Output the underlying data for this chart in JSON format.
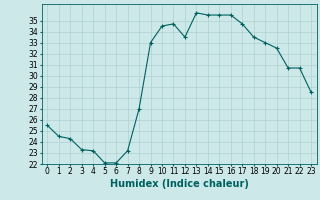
{
  "x": [
    0,
    1,
    2,
    3,
    4,
    5,
    6,
    7,
    8,
    9,
    10,
    11,
    12,
    13,
    14,
    15,
    16,
    17,
    18,
    19,
    20,
    21,
    22,
    23
  ],
  "y": [
    25.5,
    24.5,
    24.3,
    23.3,
    23.2,
    22.1,
    22.1,
    23.2,
    27.0,
    33.0,
    34.5,
    34.7,
    33.5,
    35.7,
    35.5,
    35.5,
    35.5,
    34.7,
    33.5,
    33.0,
    32.5,
    30.7,
    30.7,
    28.5
  ],
  "xlabel": "Humidex (Indice chaleur)",
  "xlim": [
    -0.5,
    23.5
  ],
  "ylim": [
    22,
    36
  ],
  "yticks": [
    22,
    23,
    24,
    25,
    26,
    27,
    28,
    29,
    30,
    31,
    32,
    33,
    34,
    35
  ],
  "xticks": [
    0,
    1,
    2,
    3,
    4,
    5,
    6,
    7,
    8,
    9,
    10,
    11,
    12,
    13,
    14,
    15,
    16,
    17,
    18,
    19,
    20,
    21,
    22,
    23
  ],
  "line_color": "#006060",
  "marker": "+",
  "bg_color": "#cce8e8",
  "grid_color": "#b0d0d0",
  "label_fontsize": 7,
  "tick_fontsize": 5.5
}
